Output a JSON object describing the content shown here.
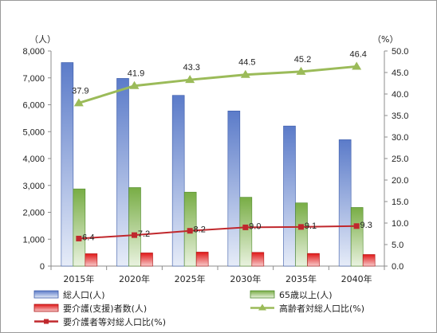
{
  "chart_data": {
    "type": "bar",
    "categories": [
      "2015年",
      "2020年",
      "2025年",
      "2030年",
      "2035年",
      "2040年"
    ],
    "left_axis": {
      "unit": "（人）",
      "range": [
        0,
        8000
      ],
      "ticks": [
        "0",
        "1,000",
        "2,000",
        "3,000",
        "4,000",
        "5,000",
        "6,000",
        "7,000",
        "8,000"
      ]
    },
    "right_axis": {
      "unit": "（%）",
      "range": [
        0,
        50
      ],
      "ticks": [
        "0.0",
        "5.0",
        "10.0",
        "15.0",
        "20.0",
        "25.0",
        "30.0",
        "35.0",
        "40.0",
        "45.0",
        "50.0"
      ]
    },
    "bar_series": [
      {
        "name": "総人口(人)",
        "color": "#4f6fc0",
        "values": [
          7570,
          6980,
          6350,
          5770,
          5210,
          4700
        ]
      },
      {
        "name": "65歳以上(人)",
        "color": "#6aa63a",
        "values": [
          2870,
          2920,
          2750,
          2560,
          2350,
          2180
        ]
      },
      {
        "name": "要介護(支援)者数(人)",
        "color": "#d42020",
        "values": [
          460,
          490,
          520,
          510,
          470,
          430
        ]
      }
    ],
    "line_series": [
      {
        "name": "高齢者対総人口比(%)",
        "color": "#9bbb59",
        "marker": "triangle",
        "values": [
          37.9,
          41.9,
          43.3,
          44.5,
          45.2,
          46.4
        ],
        "labels": [
          "37.9",
          "41.9",
          "43.3",
          "44.5",
          "45.2",
          "46.4"
        ]
      },
      {
        "name": "要介護者等対総人口比(%)",
        "color": "#c0282d",
        "marker": "square",
        "values": [
          6.4,
          7.2,
          8.2,
          9.0,
          9.1,
          9.3
        ],
        "labels": [
          "6.4",
          "7.2",
          "8.2",
          "9.0",
          "9.1",
          "9.3"
        ]
      }
    ],
    "grid": false,
    "legend_position": "bottom"
  }
}
